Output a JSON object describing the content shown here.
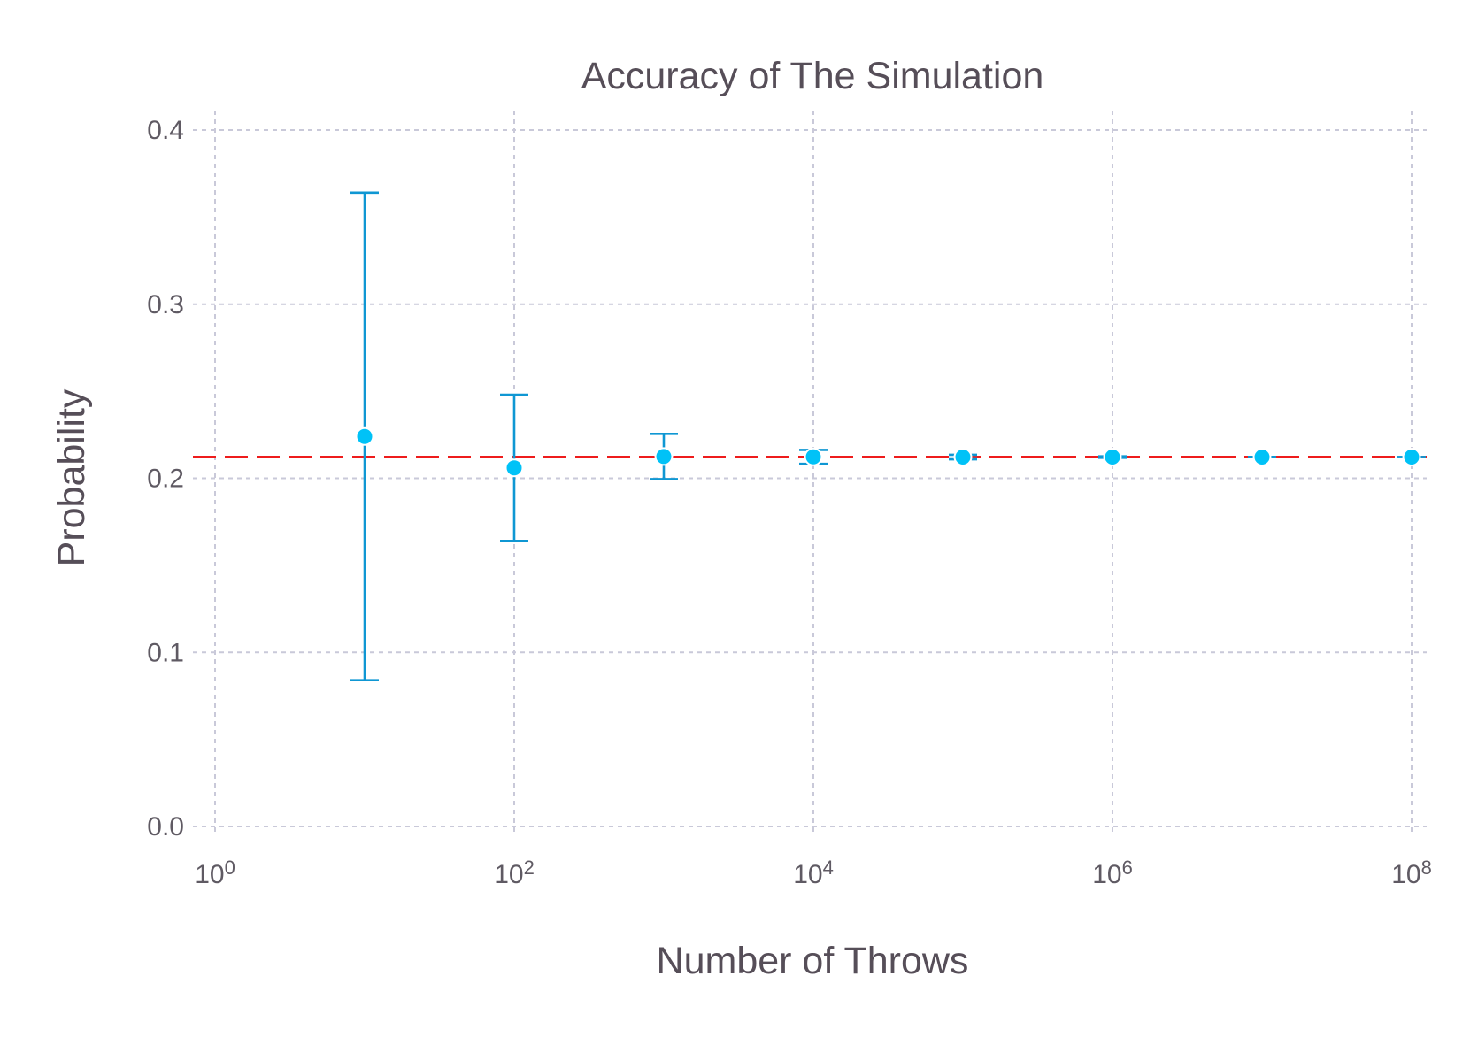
{
  "chart_data": {
    "type": "scatter",
    "title": "Accuracy of The Simulation",
    "xlabel": "Number of Throws",
    "ylabel": "Probability",
    "xscale": "log10",
    "xlim": [
      1,
      100000000
    ],
    "ylim": [
      0.0,
      0.4
    ],
    "grid": true,
    "legend": "none",
    "x_ticks": [
      {
        "base": "10",
        "exp": "0",
        "value": 1
      },
      {
        "base": "10",
        "exp": "2",
        "value": 100
      },
      {
        "base": "10",
        "exp": "4",
        "value": 10000
      },
      {
        "base": "10",
        "exp": "6",
        "value": 1000000
      },
      {
        "base": "10",
        "exp": "8",
        "value": 100000000
      }
    ],
    "y_ticks": [
      {
        "label": "0.0",
        "value": 0.0
      },
      {
        "label": "0.1",
        "value": 0.1
      },
      {
        "label": "0.2",
        "value": 0.2
      },
      {
        "label": "0.3",
        "value": 0.3
      },
      {
        "label": "0.4",
        "value": 0.4
      }
    ],
    "reference_line": {
      "y": 0.2122,
      "style": "dashed",
      "color": "#ee1c1c"
    },
    "series": [
      {
        "color": "#00c2f7",
        "error_color": "#0f97d3",
        "points": [
          {
            "x": 10,
            "y": 0.224,
            "lower": 0.084,
            "upper": 0.364
          },
          {
            "x": 100,
            "y": 0.206,
            "lower": 0.164,
            "upper": 0.248
          },
          {
            "x": 1000,
            "y": 0.2125,
            "lower": 0.1995,
            "upper": 0.2255
          },
          {
            "x": 10000,
            "y": 0.2123,
            "lower": 0.2083,
            "upper": 0.2163
          },
          {
            "x": 100000,
            "y": 0.2122,
            "lower": 0.2109,
            "upper": 0.2135
          },
          {
            "x": 1000000,
            "y": 0.2122,
            "lower": 0.2118,
            "upper": 0.2126
          },
          {
            "x": 10000000,
            "y": 0.2122,
            "lower": 0.2121,
            "upper": 0.2123
          },
          {
            "x": 100000000,
            "y": 0.2122,
            "lower": 0.21215,
            "upper": 0.21225
          }
        ]
      }
    ]
  }
}
